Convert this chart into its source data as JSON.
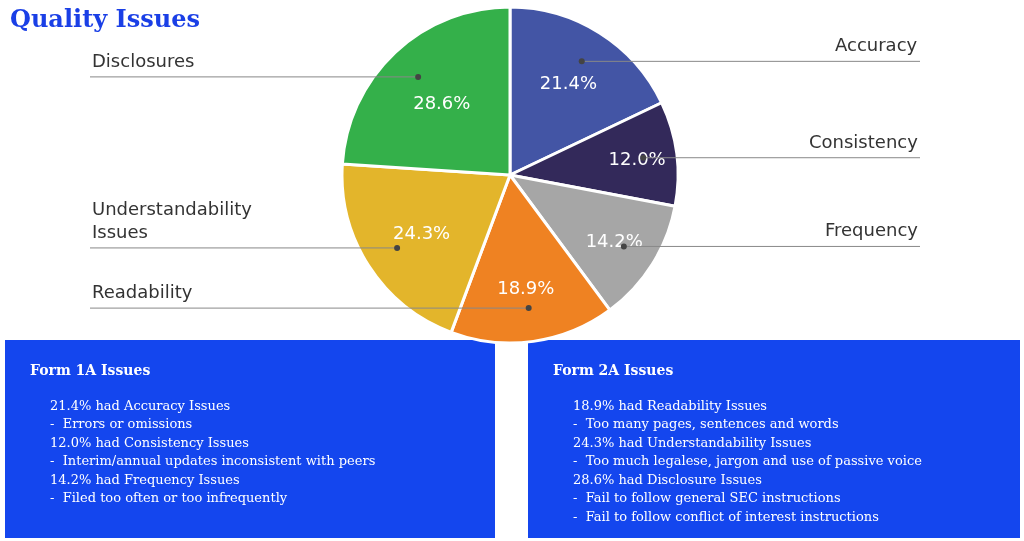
{
  "chart_data": [
    {
      "type": "pie",
      "title": "Quality Issues",
      "categories": [
        "Accuracy",
        "Consistency",
        "Frequency",
        "Readability",
        "Understandability Issues",
        "Disclosures"
      ],
      "values": [
        21.4,
        12.0,
        14.2,
        18.9,
        24.3,
        28.6
      ],
      "value_labels": [
        "21.4%",
        "12.0%",
        "14.2%",
        "18.9%",
        "24.3%",
        "28.6%"
      ],
      "colors": [
        "#4355a5",
        "#33295a",
        "#a6a6a6",
        "#ef8222",
        "#e3b52b",
        "#34b04a"
      ]
    },
    {
      "type": "other",
      "title": "Form 1A Issues",
      "annotations": [
        "21.4% had Accuracy Issues",
        "-  Errors or omissions",
        "12.0% had Consistency Issues",
        "-  Interim/annual updates inconsistent with peers",
        "14.2% had Frequency Issues",
        "-  Filed too often or too infrequently"
      ]
    },
    {
      "type": "other",
      "title": "Form 2A Issues",
      "annotations": [
        "18.9% had Readability Issues",
        "-  Too many pages, sentences and words",
        "24.3% had Understandability Issues",
        "-  Too much legalese, jargon and use of passive voice",
        "28.6% had Disclosure Issues",
        "-  Fail to follow general SEC instructions",
        "-  Fail to follow conflict of interest instructions"
      ]
    }
  ]
}
